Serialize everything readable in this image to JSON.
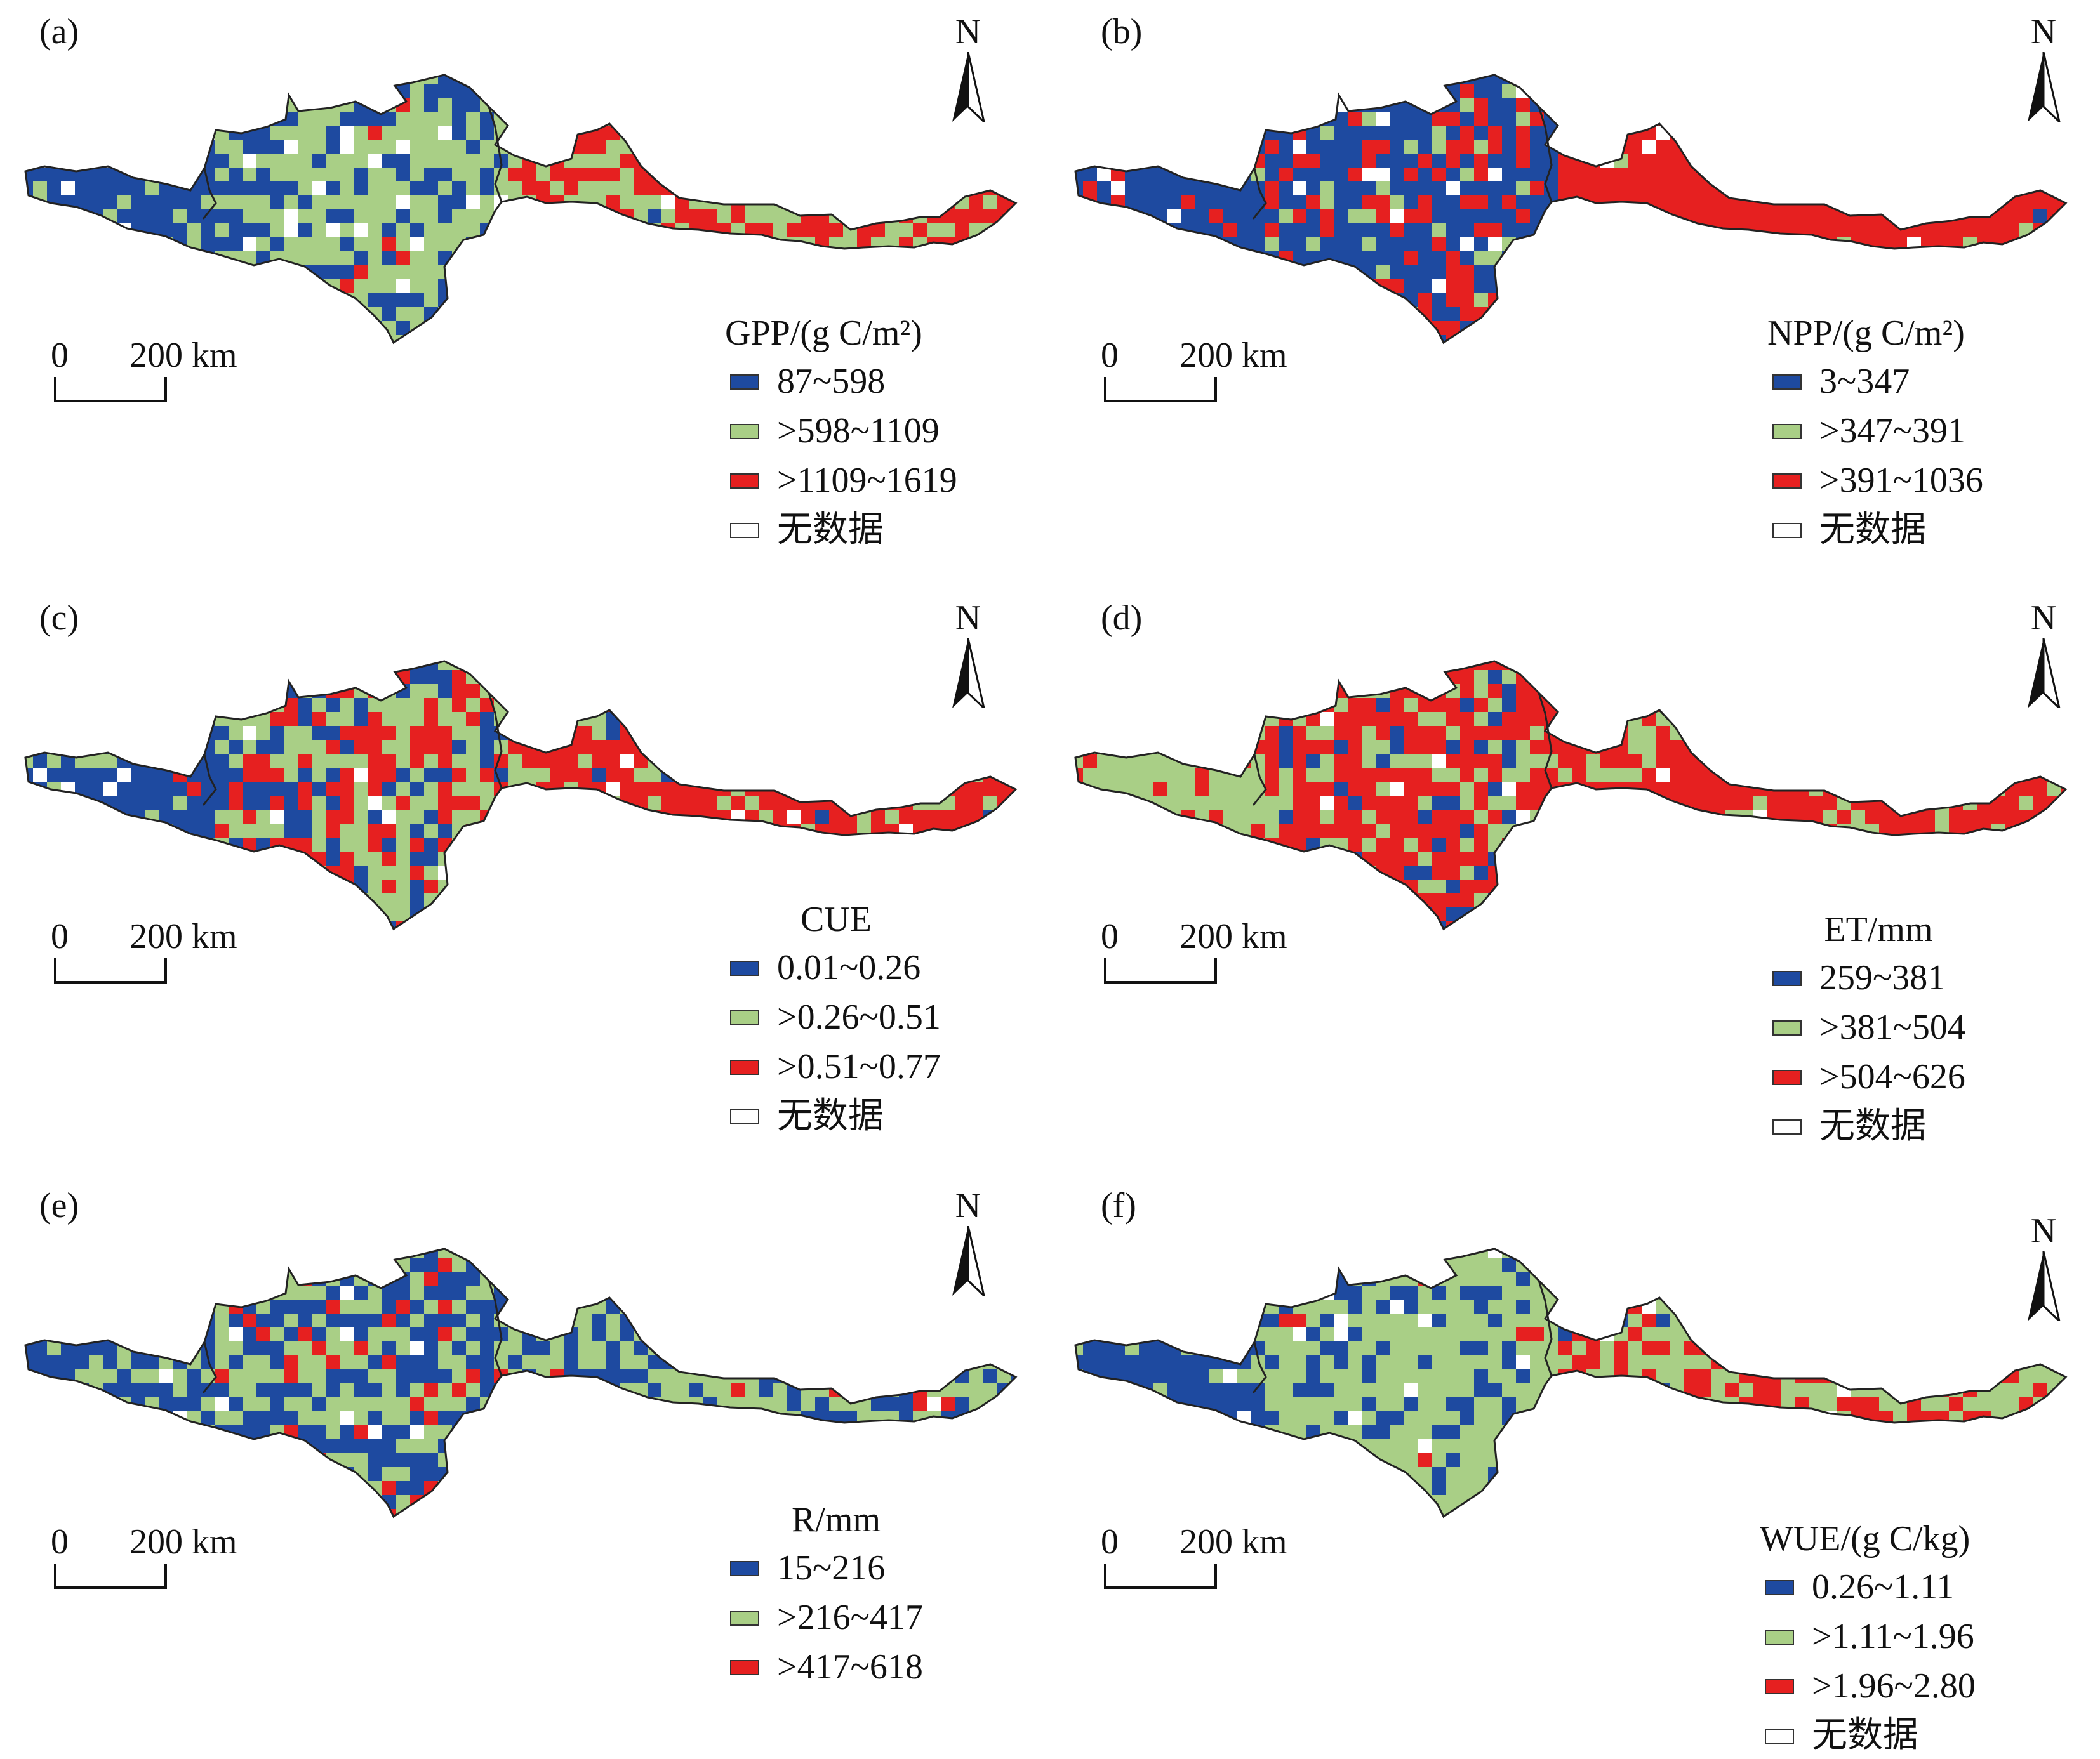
{
  "colors": {
    "class1": "#1e4aa0",
    "class2": "#a9cf86",
    "class3": "#e62020",
    "nodata": "#ffffff",
    "outline": "#222222"
  },
  "north_label": "N",
  "scale": {
    "zero": "0",
    "text": "200 km"
  },
  "panels": [
    {
      "label": "(a)",
      "title": "GPP/(g C/m²)",
      "classes": [
        "87~598",
        ">598~1109",
        ">1109~1619",
        "无数据"
      ]
    },
    {
      "label": "(b)",
      "title": "NPP/(g C/m²)",
      "classes": [
        "3~347",
        ">347~391",
        ">391~1036",
        "无数据"
      ]
    },
    {
      "label": "(c)",
      "title": "CUE",
      "classes": [
        "0.01~0.26",
        ">0.26~0.51",
        ">0.51~0.77",
        "无数据"
      ]
    },
    {
      "label": "(d)",
      "title": "ET/mm",
      "classes": [
        "259~381",
        ">381~504",
        ">504~626",
        "无数据"
      ]
    },
    {
      "label": "(e)",
      "title": "R/mm",
      "classes": [
        "15~216",
        ">216~417",
        ">417~618"
      ]
    },
    {
      "label": "(f)",
      "title": "WUE/(g C/kg)",
      "classes": [
        "0.26~1.11",
        ">1.11~1.96",
        ">1.96~2.80",
        "无数据"
      ]
    }
  ]
}
